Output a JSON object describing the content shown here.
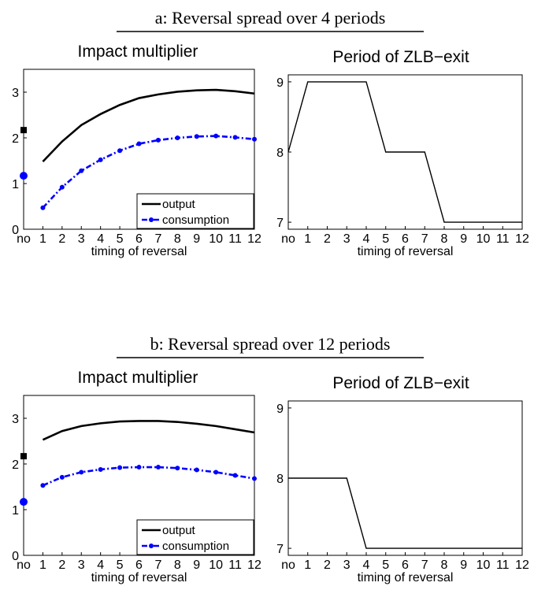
{
  "panels": [
    {
      "title": "a: Reversal spread over 4 periods",
      "charts": [
        {
          "type": "line",
          "title": "Impact multiplier",
          "xlabel": "timing of reversal",
          "categories": [
            "no",
            "1",
            "2",
            "3",
            "4",
            "5",
            "6",
            "7",
            "8",
            "9",
            "10",
            "11",
            "12"
          ],
          "ylim": [
            0,
            3.5
          ],
          "yticks": [
            0,
            1,
            2,
            3
          ],
          "series": [
            {
              "name": "output",
              "color": "#000000",
              "style": "solid",
              "marker": "square",
              "no_value": 2.17,
              "values": [
                1.48,
                1.92,
                2.28,
                2.52,
                2.72,
                2.87,
                2.95,
                3.01,
                3.04,
                3.05,
                3.02,
                2.97
              ]
            },
            {
              "name": "consumption",
              "color": "#0000ff",
              "style": "dashdot",
              "marker": "circle",
              "no_value": 1.17,
              "values": [
                0.47,
                0.92,
                1.28,
                1.52,
                1.72,
                1.87,
                1.95,
                2.0,
                2.03,
                2.04,
                2.01,
                1.97
              ]
            }
          ],
          "legend": "bottom-right"
        },
        {
          "type": "line",
          "title": "Period of ZLB−exit",
          "xlabel": "timing of reversal",
          "categories": [
            "no",
            "1",
            "2",
            "3",
            "4",
            "5",
            "6",
            "7",
            "8",
            "9",
            "10",
            "11",
            "12"
          ],
          "ylim": [
            6.9,
            9.1
          ],
          "yticks": [
            7,
            8,
            9
          ],
          "series": [
            {
              "color": "#000000",
              "style": "solid",
              "values": [
                8,
                9,
                9,
                9,
                9,
                8,
                8,
                8,
                7,
                7,
                7,
                7,
                7
              ]
            }
          ]
        }
      ]
    },
    {
      "title": "b: Reversal spread over 12 periods",
      "charts": [
        {
          "type": "line",
          "title": "Impact multiplier",
          "xlabel": "timing of reversal",
          "categories": [
            "no",
            "1",
            "2",
            "3",
            "4",
            "5",
            "6",
            "7",
            "8",
            "9",
            "10",
            "11",
            "12"
          ],
          "ylim": [
            0,
            3.5
          ],
          "yticks": [
            0,
            1,
            2,
            3
          ],
          "series": [
            {
              "name": "output",
              "color": "#000000",
              "style": "solid",
              "marker": "square",
              "no_value": 2.17,
              "values": [
                2.53,
                2.72,
                2.83,
                2.89,
                2.93,
                2.94,
                2.94,
                2.92,
                2.88,
                2.83,
                2.76,
                2.69
              ]
            },
            {
              "name": "consumption",
              "color": "#0000ff",
              "style": "dashdot",
              "marker": "circle",
              "no_value": 1.17,
              "values": [
                1.53,
                1.71,
                1.82,
                1.88,
                1.92,
                1.93,
                1.93,
                1.91,
                1.87,
                1.82,
                1.75,
                1.68
              ]
            }
          ],
          "legend": "bottom-right"
        },
        {
          "type": "line",
          "title": "Period of ZLB−exit",
          "xlabel": "timing of reversal",
          "categories": [
            "no",
            "1",
            "2",
            "3",
            "4",
            "5",
            "6",
            "7",
            "8",
            "9",
            "10",
            "11",
            "12"
          ],
          "ylim": [
            6.9,
            9.1
          ],
          "yticks": [
            7,
            8,
            9
          ],
          "series": [
            {
              "color": "#000000",
              "style": "solid",
              "values": [
                8,
                8,
                8,
                8,
                7,
                7,
                7,
                7,
                7,
                7,
                7,
                7,
                7
              ]
            }
          ]
        }
      ]
    }
  ]
}
